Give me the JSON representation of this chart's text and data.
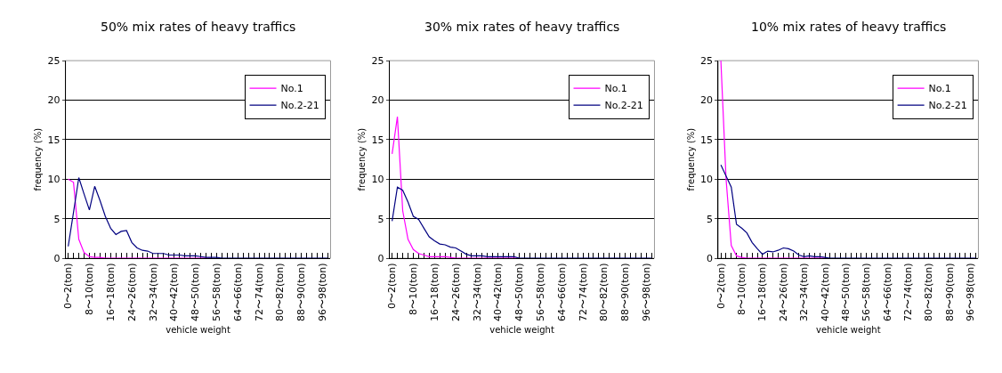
{
  "chart_data": [
    {
      "type": "line",
      "title": "50% mix rates of heavy traffics",
      "xlabel": "vehicle weight",
      "ylabel": "frequency (%)",
      "categories": [
        "0〜2(ton)",
        null,
        null,
        null,
        "8〜10(ton)",
        null,
        null,
        null,
        "16〜18(ton)",
        null,
        null,
        null,
        "24〜26(ton)",
        null,
        null,
        null,
        "32〜34(ton)",
        null,
        null,
        null,
        "40〜42(ton)",
        null,
        null,
        null,
        "48〜50(ton)",
        null,
        null,
        null,
        "56〜58(ton)",
        null,
        null,
        null,
        "64〜66(ton)",
        null,
        null,
        null,
        "72〜74(ton)",
        null,
        null,
        null,
        "80〜82(ton)",
        null,
        null,
        null,
        "88〜90(ton)",
        null,
        null,
        null,
        "96〜98(ton)",
        null
      ],
      "ylim": [
        0,
        25
      ],
      "yticks": [
        0,
        5,
        10,
        15,
        20,
        25
      ],
      "grid": "y",
      "legend": "top right",
      "series": [
        {
          "name": "No.1",
          "color": "#ff00ff",
          "values": [
            10.0,
            9.6,
            2.4,
            0.7,
            0.2,
            0.1,
            0.1,
            0,
            0,
            0,
            0,
            0,
            0,
            0,
            0,
            0,
            0,
            0,
            0,
            0,
            0,
            0,
            0,
            0,
            0,
            0,
            0,
            0,
            null,
            null,
            null,
            null,
            null,
            null,
            null,
            null,
            null,
            null,
            null,
            null,
            null,
            null,
            null,
            null,
            null,
            null,
            null,
            null,
            null,
            null
          ]
        },
        {
          "name": "No.2-21",
          "color": "#000080",
          "values": [
            1.5,
            5.8,
            10.2,
            8.1,
            6.1,
            9.1,
            7.3,
            5.3,
            3.8,
            3.0,
            3.4,
            3.5,
            2.0,
            1.3,
            1.0,
            0.9,
            0.6,
            0.6,
            0.6,
            0.4,
            0.4,
            0.4,
            0.3,
            0.3,
            0.3,
            0.2,
            0.1,
            0.1,
            0.1,
            0,
            0,
            0,
            0,
            0,
            0,
            0,
            0,
            0,
            0,
            0,
            0,
            0,
            0,
            0,
            0,
            0,
            0,
            0,
            0,
            0
          ]
        }
      ]
    },
    {
      "type": "line",
      "title": "30% mix rates of heavy traffics",
      "xlabel": "vehicle weight",
      "ylabel": "frequency (%)",
      "categories": [
        "0〜2(ton)",
        null,
        null,
        null,
        "8〜10(ton)",
        null,
        null,
        null,
        "16〜18(ton)",
        null,
        null,
        null,
        "24〜26(ton)",
        null,
        null,
        null,
        "32〜34(ton)",
        null,
        null,
        null,
        "40〜42(ton)",
        null,
        null,
        null,
        "48〜50(ton)",
        null,
        null,
        null,
        "56〜58(ton)",
        null,
        null,
        null,
        "64〜66(ton)",
        null,
        null,
        null,
        "72〜74(ton)",
        null,
        null,
        null,
        "80〜82(ton)",
        null,
        null,
        null,
        "88〜90(ton)",
        null,
        null,
        null,
        "96〜98(ton)",
        null
      ],
      "ylim": [
        0,
        25
      ],
      "yticks": [
        0,
        5,
        10,
        15,
        20,
        25
      ],
      "grid": "y",
      "legend": "top right",
      "series": [
        {
          "name": "No.1",
          "color": "#ff00ff",
          "values": [
            13.2,
            17.9,
            6.0,
            2.4,
            1.1,
            0.6,
            0.4,
            0.2,
            0.2,
            0.2,
            0.2,
            0.1,
            0,
            0,
            0,
            0,
            0,
            0,
            0,
            0,
            0,
            0,
            0,
            0,
            0,
            null,
            null,
            null,
            null,
            null,
            null,
            null,
            null,
            null,
            null,
            null,
            null,
            null,
            null,
            null,
            null,
            null,
            null,
            null,
            null,
            null,
            null,
            null,
            null,
            null
          ]
        },
        {
          "name": "No.2-21",
          "color": "#000080",
          "values": [
            4.7,
            9.0,
            8.6,
            7.1,
            5.3,
            4.9,
            3.8,
            2.7,
            2.2,
            1.8,
            1.7,
            1.4,
            1.3,
            0.9,
            0.5,
            0.3,
            0.3,
            0.3,
            0.2,
            0.2,
            0.2,
            0.2,
            0.2,
            0.2,
            0,
            0,
            0,
            0,
            0,
            0,
            0,
            0,
            0,
            0,
            0,
            0,
            0,
            0,
            0,
            0,
            0,
            0,
            0,
            0,
            0,
            0,
            0,
            0,
            0,
            0
          ]
        }
      ]
    },
    {
      "type": "line",
      "title": "10% mix rates of heavy traffics",
      "xlabel": "vehicle weight",
      "ylabel": "frequency (%)",
      "categories": [
        "0〜2(ton)",
        null,
        null,
        null,
        "8〜10(ton)",
        null,
        null,
        null,
        "16〜18(ton)",
        null,
        null,
        null,
        "24〜26(ton)",
        null,
        null,
        null,
        "32〜34(ton)",
        null,
        null,
        null,
        "40〜42(ton)",
        null,
        null,
        null,
        "48〜50(ton)",
        null,
        null,
        null,
        "56〜58(ton)",
        null,
        null,
        null,
        "64〜66(ton)",
        null,
        null,
        null,
        "72〜74(ton)",
        null,
        null,
        null,
        "80〜82(ton)",
        null,
        null,
        null,
        "88〜90(ton)",
        null,
        null,
        null,
        "96〜98(ton)",
        null
      ],
      "ylim": [
        0,
        25
      ],
      "yticks": [
        0,
        5,
        10,
        15,
        20,
        25
      ],
      "grid": "y",
      "legend": "top right",
      "series": [
        {
          "name": "No.1",
          "color": "#ff00ff",
          "values": [
            25,
            10.0,
            1.6,
            0.3,
            0.1,
            0,
            0,
            0,
            0,
            0,
            0,
            0,
            0,
            0,
            0,
            0,
            0,
            0,
            0,
            0,
            0,
            null,
            null,
            null,
            null,
            null,
            null,
            null,
            null,
            null,
            null,
            null,
            null,
            null,
            null,
            null,
            null,
            null,
            null,
            null,
            null,
            null,
            null,
            null,
            null,
            null,
            null,
            null,
            null,
            null
          ]
        },
        {
          "name": "No.2-21",
          "color": "#000080",
          "values": [
            11.8,
            10.4,
            9.0,
            4.3,
            3.8,
            3.2,
            2.0,
            1.2,
            0.5,
            0.9,
            0.8,
            1.0,
            1.3,
            1.2,
            0.9,
            0.4,
            0.2,
            0.3,
            0.2,
            0.2,
            0.1,
            0,
            0,
            0,
            0,
            0,
            0,
            0,
            0,
            0,
            0,
            0,
            0,
            0,
            0,
            0,
            0,
            0,
            0,
            0,
            0,
            0,
            0,
            0,
            0,
            0,
            0,
            0,
            0,
            0
          ]
        }
      ]
    }
  ]
}
